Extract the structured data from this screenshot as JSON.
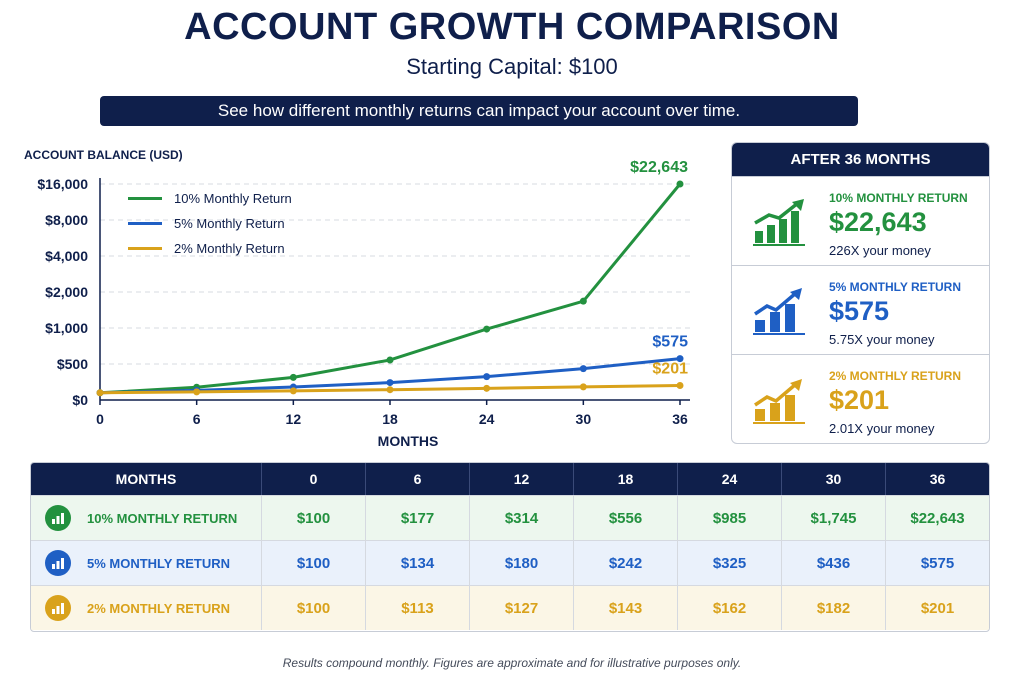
{
  "title": "ACCOUNT GROWTH COMPARISON",
  "subtitle": "Starting Capital: $100",
  "banner": "See how different monthly returns can impact your account over time.",
  "colors": {
    "navy": "#0f1f4b",
    "green": "#23913f",
    "blue": "#1f5fc4",
    "gold": "#d9a21b"
  },
  "chart_data": {
    "type": "line",
    "ylabel": "ACCOUNT BALANCE (USD)",
    "xlabel": "MONTHS",
    "x_ticks": [
      "0",
      "6",
      "12",
      "18",
      "24",
      "30",
      "36"
    ],
    "y_ticks": [
      "$0",
      "$500",
      "$1,000",
      "$2,000",
      "$4,000",
      "$8,000",
      "$16,000"
    ],
    "y_tick_values": [
      0,
      500,
      1000,
      2000,
      4000,
      8000,
      16000
    ],
    "xlim": [
      0,
      36
    ],
    "grid": "horizontal dashed",
    "legend_position": "top-left",
    "x": [
      0,
      6,
      12,
      18,
      24,
      30,
      36
    ],
    "series": [
      {
        "name": "10% Monthly Return",
        "color": "#23913f",
        "values": [
          100,
          177,
          314,
          556,
          985,
          1745,
          22643
        ],
        "end_label": "$22,643"
      },
      {
        "name": "5% Monthly Return",
        "color": "#1f5fc4",
        "values": [
          100,
          134,
          180,
          242,
          325,
          436,
          575
        ],
        "end_label": "$575"
      },
      {
        "name": "2% Monthly Return",
        "color": "#d9a21b",
        "values": [
          100,
          113,
          127,
          143,
          162,
          182,
          201
        ],
        "end_label": "$201"
      }
    ]
  },
  "summary": {
    "heading": "AFTER 36 MONTHS",
    "cards": [
      {
        "label": "10% MONTHLY RETURN",
        "value": "$22,643",
        "multiple": "226X your money",
        "color": "#23913f",
        "icon": "growth-chart-icon"
      },
      {
        "label": "5% MONTHLY RETURN",
        "value": "$575",
        "multiple": "5.75X your money",
        "color": "#1f5fc4",
        "icon": "growth-chart-icon"
      },
      {
        "label": "2% MONTHLY RETURN",
        "value": "$201",
        "multiple": "2.01X your money",
        "color": "#d9a21b",
        "icon": "growth-chart-icon"
      }
    ]
  },
  "table": {
    "headers": [
      "MONTHS",
      "0",
      "6",
      "12",
      "18",
      "24",
      "30",
      "36"
    ],
    "rows": [
      {
        "label": "10% MONTHLY RETURN",
        "color": "#23913f",
        "bg": "#edf7ee",
        "cells": [
          "$100",
          "$177",
          "$314",
          "$556",
          "$985",
          "$1,745",
          "$22,643"
        ]
      },
      {
        "label": "5% MONTHLY RETURN",
        "color": "#1f5fc4",
        "bg": "#eaf1fb",
        "cells": [
          "$100",
          "$134",
          "$180",
          "$242",
          "$325",
          "$436",
          "$575"
        ]
      },
      {
        "label": "2% MONTHLY RETURN",
        "color": "#d9a21b",
        "bg": "#fbf6e6",
        "cells": [
          "$100",
          "$113",
          "$127",
          "$143",
          "$162",
          "$182",
          "$201"
        ]
      }
    ]
  },
  "footnote": "Results compound monthly. Figures are approximate and for illustrative purposes only."
}
